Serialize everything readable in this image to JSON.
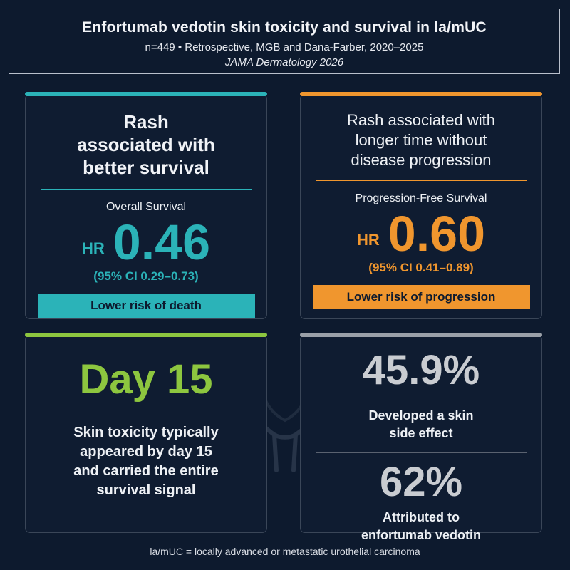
{
  "header": {
    "title": "Enfortumab vedotin skin toxicity and survival in la/mUC",
    "subtitle": "n=449  •  Retrospective, MGB and Dana-Farber, 2020–2025",
    "journal": "JAMA Dermatology 2026"
  },
  "os_card": {
    "headline": [
      "Rash",
      "associated with",
      "better survival"
    ],
    "metric_label": "Overall Survival",
    "hr_label": "HR",
    "hr_value": "0.46",
    "ci": "(95% CI 0.29–0.73)",
    "badge": "Lower risk of death"
  },
  "pfs_card": {
    "headline": [
      "Rash associated with",
      "longer time without",
      "disease progression"
    ],
    "metric_label": "Progression-Free Survival",
    "hr_label": "HR",
    "hr_value": "0.60",
    "ci": "(95% CI 0.41–0.89)",
    "badge": "Lower risk of progression"
  },
  "day_card": {
    "value": "Day 15",
    "text": [
      "Skin toxicity typically",
      "appeared by day 15",
      "and carried the entire",
      "survival signal"
    ]
  },
  "stats_card": {
    "stat1_value": "45.9%",
    "stat1_text": [
      "Developed a skin",
      "side effect"
    ],
    "stat2_value": "62%",
    "stat2_text": [
      "Attributed to",
      "enfortumab vedotin"
    ]
  },
  "footnote": "la/mUC = locally advanced or metastatic urothelial carcinoma",
  "colors": {
    "background": "#0d1a2e",
    "teal": "#2bb3b8",
    "orange": "#f0962e",
    "green": "#8dc63f",
    "gray": "#9aa0a8"
  },
  "icons": {
    "background_graphic": "bladder-icon"
  }
}
